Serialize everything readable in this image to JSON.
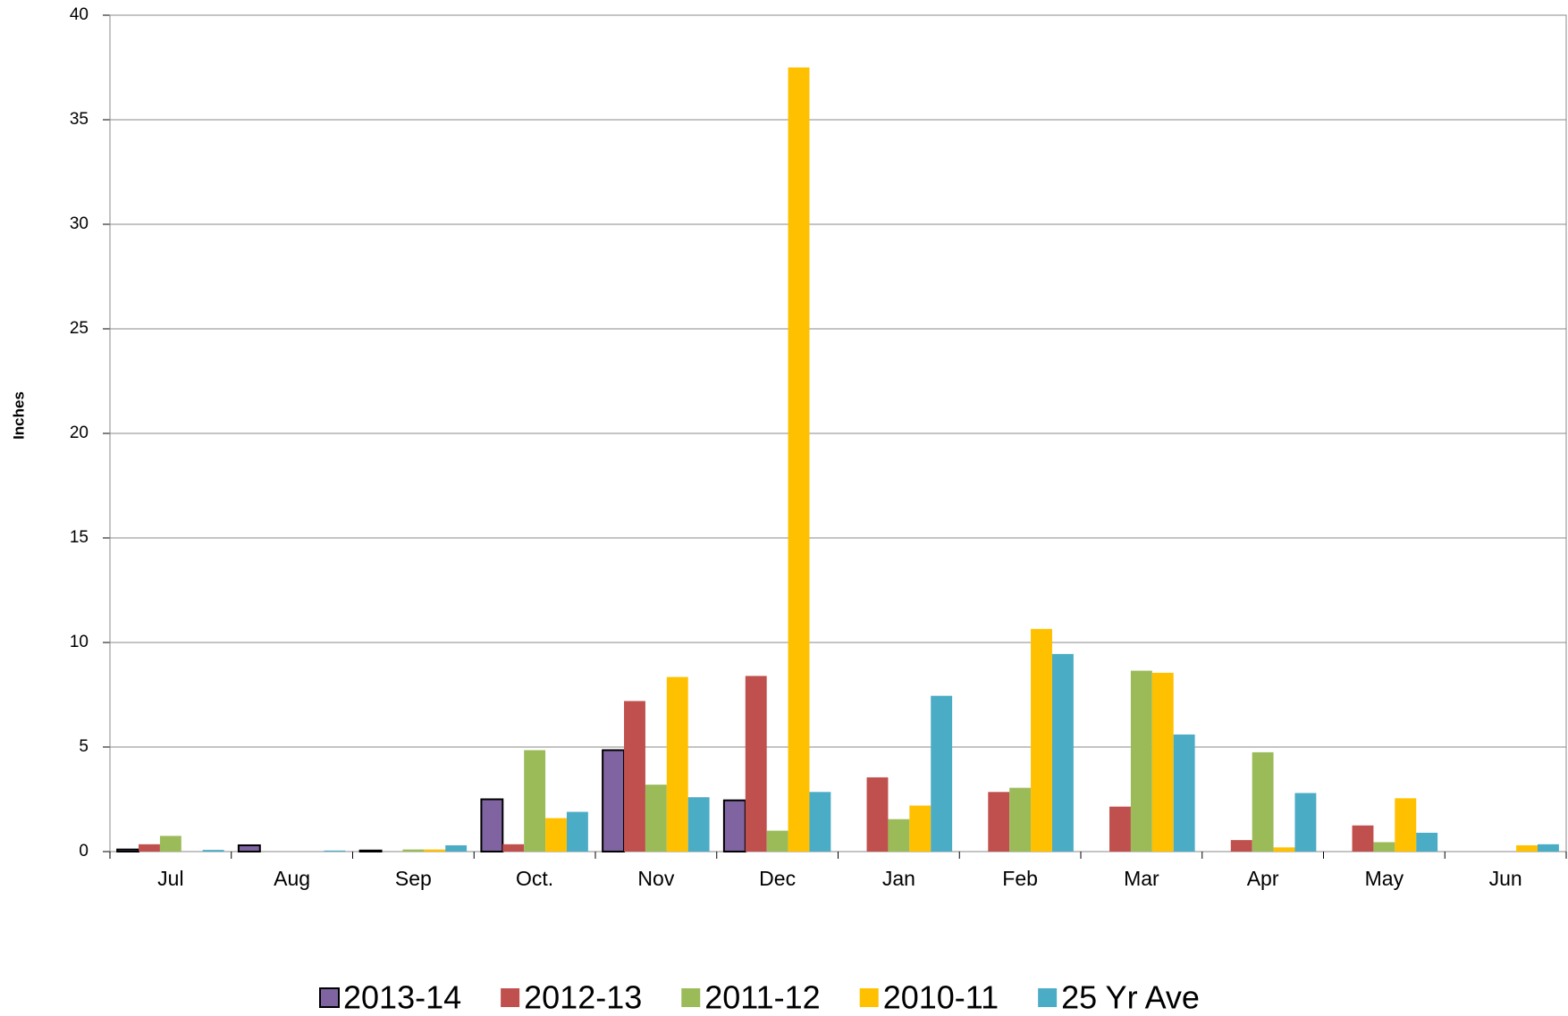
{
  "chart_data": {
    "type": "bar",
    "y_label": "Inches",
    "categories": [
      "Jul",
      "Aug",
      "Sep",
      "Oct.",
      "Nov",
      "Dec",
      "Jan",
      "Feb",
      "Mar",
      "Apr",
      "May",
      "Jun"
    ],
    "series": [
      {
        "name": "2013-14",
        "color": "#8064a2",
        "values": [
          0.1,
          0.3,
          0.05,
          2.5,
          4.85,
          2.45,
          null,
          null,
          null,
          null,
          null,
          null
        ]
      },
      {
        "name": "2012-13",
        "color": "#c0504d",
        "values": [
          0.35,
          0,
          0,
          0.35,
          7.2,
          8.4,
          3.55,
          2.85,
          2.15,
          0.55,
          1.25,
          0
        ]
      },
      {
        "name": "2011-12",
        "color": "#9bbb59",
        "values": [
          0.75,
          0,
          0.1,
          4.85,
          3.2,
          1.0,
          1.55,
          3.05,
          8.65,
          4.75,
          0.45,
          0
        ]
      },
      {
        "name": "2010-11",
        "color": "#ffc000",
        "values": [
          0,
          0,
          0.1,
          1.6,
          8.35,
          37.5,
          2.2,
          10.65,
          8.55,
          0.2,
          2.55,
          0.3
        ]
      },
      {
        "name": "25 Yr Ave",
        "color": "#4bacc6",
        "values": [
          0.08,
          0.05,
          0.3,
          1.9,
          2.6,
          2.85,
          7.45,
          9.45,
          5.6,
          2.8,
          0.9,
          0.35
        ]
      }
    ],
    "ylim": [
      0,
      40
    ],
    "yticks": [
      0,
      5,
      10,
      15,
      20,
      25,
      30,
      35,
      40
    ],
    "grid": true,
    "legend": "bottom"
  }
}
